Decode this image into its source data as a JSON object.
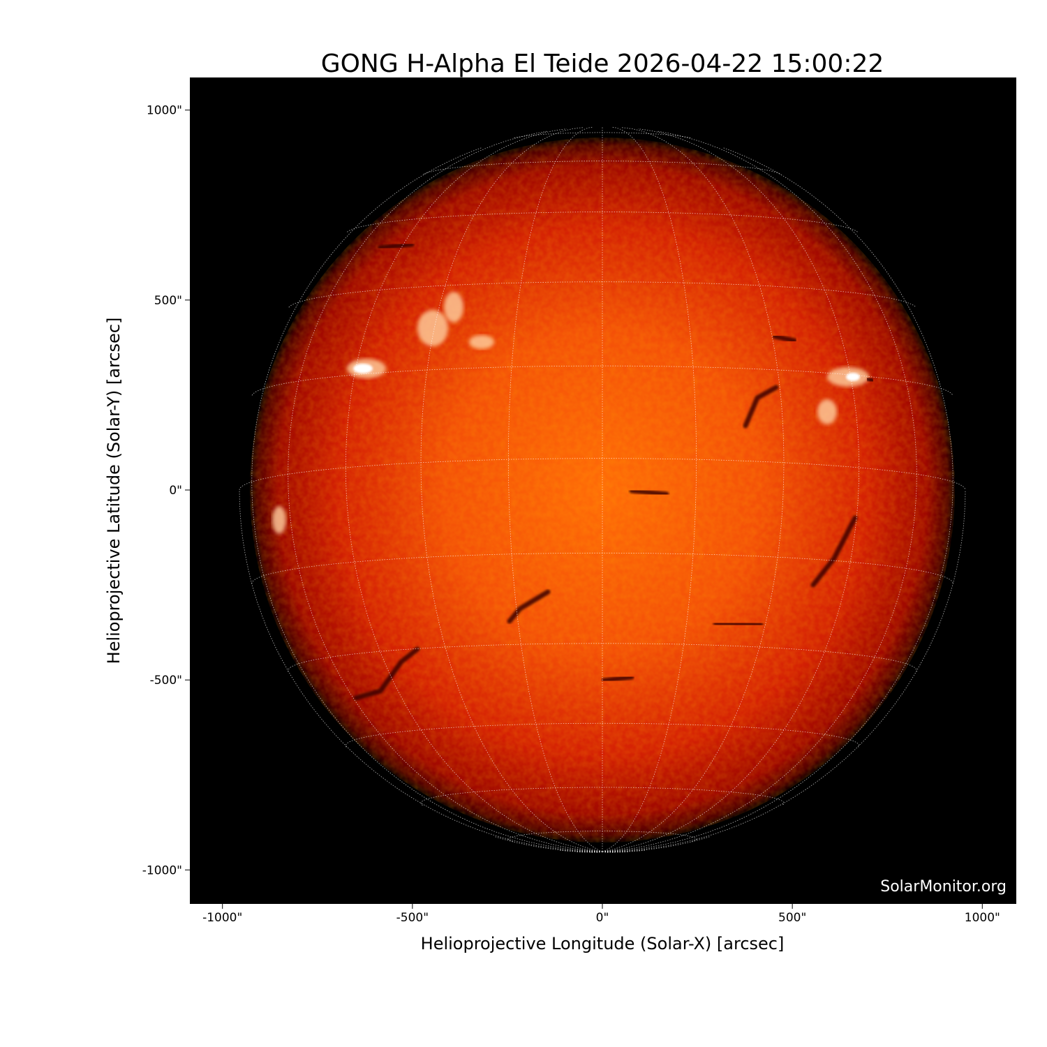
{
  "chart_data": {
    "type": "image",
    "title": "GONG H-Alpha El Teide 2026-04-22 15:00:22",
    "xlabel": "Helioprojective Longitude (Solar-X) [arcsec]",
    "ylabel": "Helioprojective Latitude (Solar-Y) [arcsec]",
    "xlim": [
      -1085,
      1085
    ],
    "ylim": [
      -1085,
      1085
    ],
    "xticks": [
      {
        "value": -1000,
        "label": "-1000\""
      },
      {
        "value": -500,
        "label": "-500\""
      },
      {
        "value": 0,
        "label": "0\""
      },
      {
        "value": 500,
        "label": "500\""
      },
      {
        "value": 1000,
        "label": "1000\""
      }
    ],
    "yticks": [
      {
        "value": 1000,
        "label": "1000\""
      },
      {
        "value": 500,
        "label": "500\""
      },
      {
        "value": 0,
        "label": "0\""
      },
      {
        "value": -500,
        "label": "-500\""
      },
      {
        "value": -1000,
        "label": "-1000\""
      }
    ],
    "grid": "heliographic 15° dotted white",
    "colormap": [
      "#000000",
      "#600000",
      "#c81000",
      "#ff6a00",
      "#ffffff"
    ],
    "watermark": "SolarMonitor.org"
  }
}
